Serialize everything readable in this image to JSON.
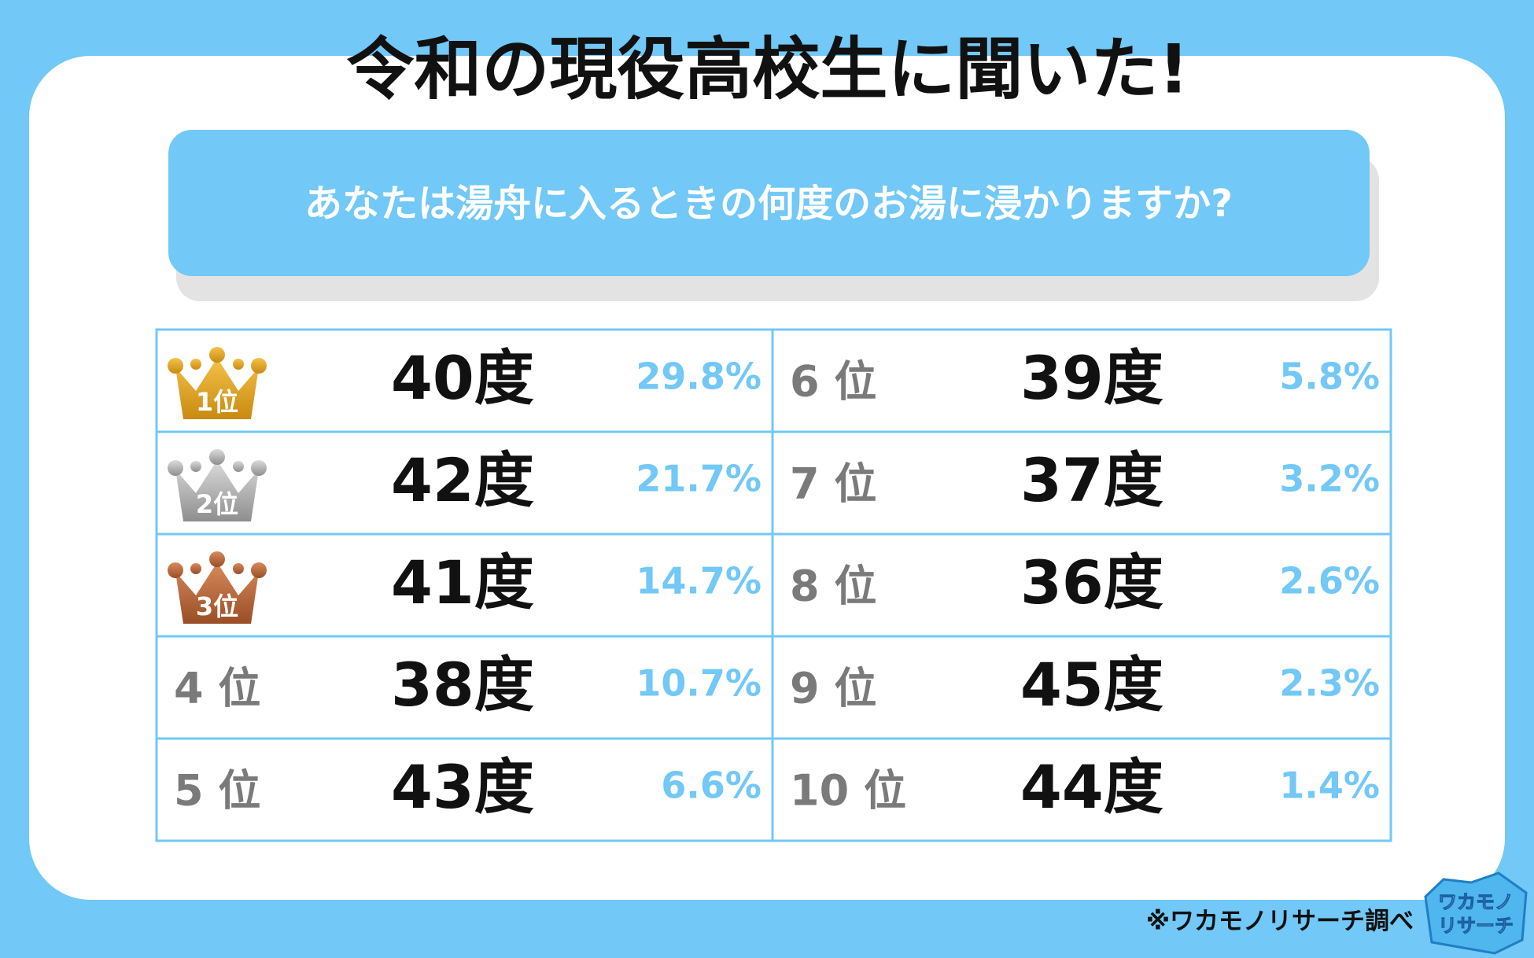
{
  "header": {
    "title": "令和の現役高校生に聞いた!",
    "question": "あなたは湯舟に入るときの何度のお湯に浸かりますか?"
  },
  "ranking": {
    "rows": [
      {
        "rank": "1位",
        "answer": "40度",
        "percent": "29.8%"
      },
      {
        "rank": "2位",
        "answer": "42度",
        "percent": "21.7%"
      },
      {
        "rank": "3位",
        "answer": "41度",
        "percent": "14.7%"
      },
      {
        "rank": "4 位",
        "answer": "38度",
        "percent": "10.7%"
      },
      {
        "rank": "5 位",
        "answer": "43度",
        "percent": "6.6%"
      },
      {
        "rank": "6 位",
        "answer": "39度",
        "percent": "5.8%"
      },
      {
        "rank": "7 位",
        "answer": "37度",
        "percent": "3.2%"
      },
      {
        "rank": "8 位",
        "answer": "36度",
        "percent": "2.6%"
      },
      {
        "rank": "9 位",
        "answer": "45度",
        "percent": "2.3%"
      },
      {
        "rank": "10 位",
        "answer": "44度",
        "percent": "1.4%"
      }
    ]
  },
  "footer": {
    "source": "※ワカモノリサーチ調べ",
    "logo": [
      "ワカモノ",
      "リサーチ"
    ]
  }
}
